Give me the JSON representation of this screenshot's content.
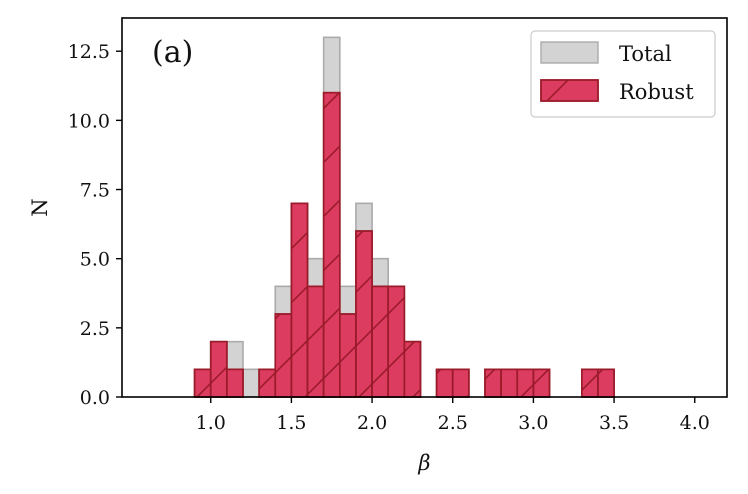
{
  "chart_data": {
    "type": "bar",
    "subtype": "histogram",
    "panel_label": "(a)",
    "xlabel": "β",
    "ylabel": "N",
    "xlim": [
      0.45,
      4.2
    ],
    "ylim": [
      0,
      13.7
    ],
    "xticks": [
      1.0,
      1.5,
      2.0,
      2.5,
      3.0,
      3.5,
      4.0
    ],
    "xtick_labels": [
      "1.0",
      "1.5",
      "2.0",
      "2.5",
      "3.0",
      "3.5",
      "4.0"
    ],
    "yticks": [
      0.0,
      2.5,
      5.0,
      7.5,
      10.0,
      12.5
    ],
    "ytick_labels": [
      "0.0",
      "2.5",
      "5.0",
      "7.5",
      "10.0",
      "12.5"
    ],
    "legend_position": "top-right",
    "bin_width": 0.1,
    "series": [
      {
        "name": "Total",
        "color": "#d3d3d3",
        "edge_color": "#aaaaaa",
        "bins": [
          {
            "x": 0.95,
            "value": 1
          },
          {
            "x": 1.05,
            "value": 2
          },
          {
            "x": 1.15,
            "value": 2
          },
          {
            "x": 1.25,
            "value": 1
          },
          {
            "x": 1.35,
            "value": 1
          },
          {
            "x": 1.45,
            "value": 4
          },
          {
            "x": 1.55,
            "value": 7
          },
          {
            "x": 1.65,
            "value": 5
          },
          {
            "x": 1.75,
            "value": 13
          },
          {
            "x": 1.85,
            "value": 4
          },
          {
            "x": 1.95,
            "value": 7
          },
          {
            "x": 2.05,
            "value": 5
          },
          {
            "x": 2.15,
            "value": 4
          },
          {
            "x": 2.25,
            "value": 2
          },
          {
            "x": 2.45,
            "value": 1
          },
          {
            "x": 2.55,
            "value": 1
          },
          {
            "x": 2.75,
            "value": 1
          },
          {
            "x": 2.85,
            "value": 1
          },
          {
            "x": 2.95,
            "value": 1
          },
          {
            "x": 3.05,
            "value": 1
          },
          {
            "x": 3.35,
            "value": 1
          },
          {
            "x": 3.45,
            "value": 1
          }
        ]
      },
      {
        "name": "Robust",
        "color": "#dc3c5f",
        "edge_color": "#9b1b2b",
        "hatch": "/",
        "bins": [
          {
            "x": 0.95,
            "value": 1
          },
          {
            "x": 1.05,
            "value": 2
          },
          {
            "x": 1.15,
            "value": 1
          },
          {
            "x": 1.35,
            "value": 1
          },
          {
            "x": 1.45,
            "value": 3
          },
          {
            "x": 1.55,
            "value": 7
          },
          {
            "x": 1.65,
            "value": 4
          },
          {
            "x": 1.75,
            "value": 11
          },
          {
            "x": 1.85,
            "value": 3
          },
          {
            "x": 1.95,
            "value": 6
          },
          {
            "x": 2.05,
            "value": 4
          },
          {
            "x": 2.15,
            "value": 4
          },
          {
            "x": 2.25,
            "value": 2
          },
          {
            "x": 2.45,
            "value": 1
          },
          {
            "x": 2.55,
            "value": 1
          },
          {
            "x": 2.75,
            "value": 1
          },
          {
            "x": 2.85,
            "value": 1
          },
          {
            "x": 2.95,
            "value": 1
          },
          {
            "x": 3.05,
            "value": 1
          },
          {
            "x": 3.35,
            "value": 1
          },
          {
            "x": 3.45,
            "value": 1
          }
        ]
      }
    ]
  }
}
